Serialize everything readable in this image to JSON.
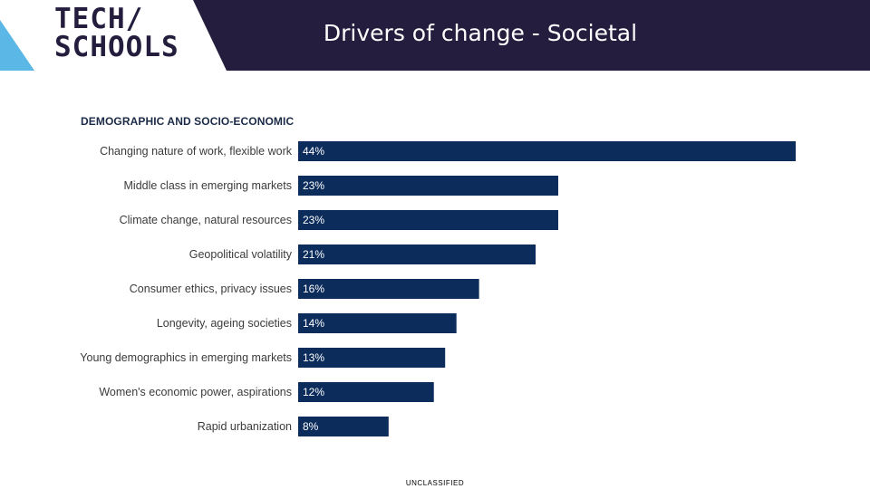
{
  "header": {
    "logo_line1": "TECH/",
    "logo_line2": "SCHOOLS",
    "title": "Drivers of change - Societal"
  },
  "colors": {
    "header_bg": "#241d3d",
    "logo_accent": "#5bb8e6",
    "bar": "#0c2c5c"
  },
  "chart_data": {
    "type": "bar",
    "orientation": "horizontal",
    "title": "DEMOGRAPHIC AND SOCIO-ECONOMIC",
    "categories": [
      "Changing nature of work, flexible work",
      "Middle class in emerging markets",
      "Climate change, natural resources",
      "Geopolitical volatility",
      "Consumer ethics, privacy issues",
      "Longevity, ageing societies",
      "Young demographics in emerging markets",
      "Women's economic power, aspirations",
      "Rapid urbanization"
    ],
    "values": [
      44,
      23,
      23,
      21,
      16,
      14,
      13,
      12,
      8
    ],
    "value_labels": [
      "44%",
      "23%",
      "23%",
      "21%",
      "16%",
      "14%",
      "13%",
      "12%",
      "8%"
    ],
    "xlim": [
      0,
      44
    ],
    "unit": "%"
  },
  "footer": {
    "classification": "UNCLASSIFIED"
  }
}
